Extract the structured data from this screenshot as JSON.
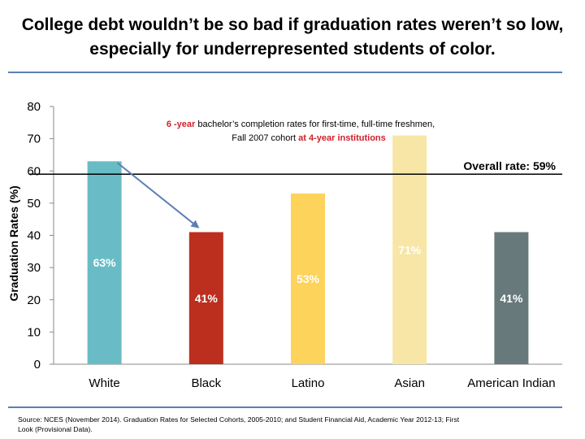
{
  "title_line1": "College debt wouldn’t be so bad if graduation rates weren’t so low,",
  "title_line2": "especially for underrepresented students of color.",
  "annotation": {
    "line1_red": "6 -year",
    "line1_rest": " bachelor’s completion rates for first-time, full-time freshmen,",
    "line2_rest": "Fall 2007 cohort ",
    "line2_red": "at 4-year institutions"
  },
  "footer_line1": "Source: NCES (November 2014). Graduation Rates for Selected Cohorts, 2005-2010; and Student Financial Aid, Academic Year 2012-13; First",
  "footer_line2": "Look (Provisional Data).",
  "colors": {
    "accent_rule": "#5b7fb5",
    "arrow": "#5b7fb5",
    "note_red": "#d0202a"
  },
  "chart_data": {
    "type": "bar",
    "ylabel": "Graduation Rates (%)",
    "ylim": [
      0,
      80
    ],
    "yticks": [
      0,
      10,
      20,
      30,
      40,
      50,
      60,
      70,
      80
    ],
    "categories": [
      "White",
      "Black",
      "Latino",
      "Asian",
      "American Indian"
    ],
    "values": [
      63,
      41,
      53,
      71,
      41
    ],
    "value_labels": [
      "63%",
      "41%",
      "53%",
      "71%",
      "41%"
    ],
    "colors": [
      "#69bcc6",
      "#bc2f1e",
      "#fdd35c",
      "#f7e6a6",
      "#68797b"
    ],
    "reference_line": {
      "value": 59,
      "label": "Overall rate: 59%"
    },
    "arrow": {
      "from": "White",
      "to": "Black"
    },
    "grid": false,
    "legend": "none"
  }
}
